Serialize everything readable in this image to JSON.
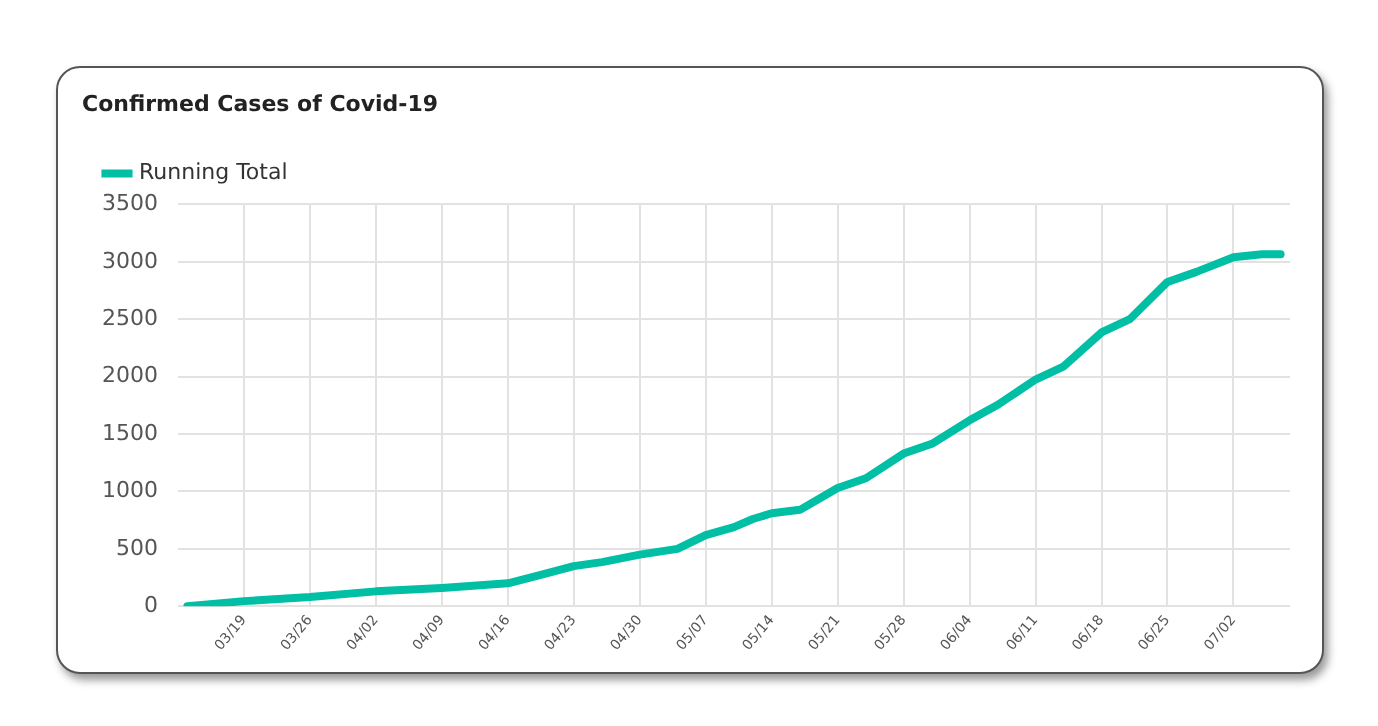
{
  "chart_data": {
    "type": "line",
    "title": "Confirmed Cases of Covid-19",
    "x": [
      "--03-13",
      "--03-19",
      "--03-26",
      "--04-02",
      "--04-09",
      "--04-16",
      "--04-20",
      "--04-23",
      "--04-26",
      "--04-30",
      "--05-04",
      "--05-07",
      "--05-10",
      "--05-12",
      "--05-14",
      "--05-17",
      "--05-21",
      "--05-24",
      "--05-28",
      "--05-31",
      "--06-04",
      "--06-07",
      "--06-11",
      "--06-14",
      "--06-18",
      "--06-21",
      "--06-25",
      "--06-28",
      "--07-02",
      "--07-05",
      "--07-07"
    ],
    "series": [
      {
        "name": "Running Total",
        "color": "#00bfa5",
        "values": [
          0,
          45,
          80,
          130,
          160,
          200,
          285,
          350,
          385,
          450,
          500,
          620,
          690,
          760,
          810,
          840,
          1030,
          1115,
          1330,
          1415,
          1620,
          1755,
          1975,
          2090,
          2385,
          2500,
          2825,
          2910,
          3040,
          3065,
          3065
        ]
      }
    ],
    "xlim": [
      "--03-12",
      "--07-08"
    ],
    "xticks": [
      {
        "value": "--03-19",
        "label": "03/19"
      },
      {
        "value": "--03-26",
        "label": "03/26"
      },
      {
        "value": "--04-02",
        "label": "04/02"
      },
      {
        "value": "--04-09",
        "label": "04/09"
      },
      {
        "value": "--04-16",
        "label": "04/16"
      },
      {
        "value": "--04-23",
        "label": "04/23"
      },
      {
        "value": "--04-30",
        "label": "04/30"
      },
      {
        "value": "--05-07",
        "label": "05/07"
      },
      {
        "value": "--05-14",
        "label": "05/14"
      },
      {
        "value": "--05-21",
        "label": "05/21"
      },
      {
        "value": "--05-28",
        "label": "05/28"
      },
      {
        "value": "--06-04",
        "label": "06/04"
      },
      {
        "value": "--06-11",
        "label": "06/11"
      },
      {
        "value": "--06-18",
        "label": "06/18"
      },
      {
        "value": "--06-25",
        "label": "06/25"
      },
      {
        "value": "--07-02",
        "label": "07/02"
      }
    ],
    "ylim": [
      0,
      3500
    ],
    "yticks": [
      0,
      500,
      1000,
      1500,
      2000,
      2500,
      3000,
      3500
    ],
    "grid": true,
    "legend": "top left",
    "marker": "none",
    "line_style": "solid"
  }
}
